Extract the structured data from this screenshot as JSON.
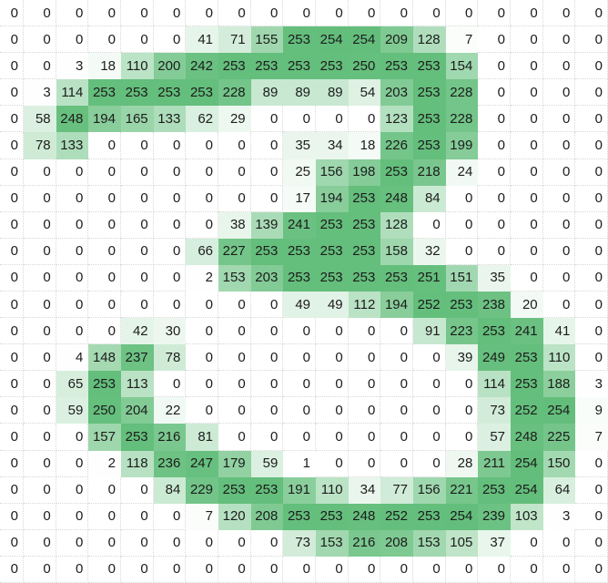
{
  "chart_data": {
    "type": "heatmap",
    "title": "",
    "rows": 22,
    "cols": 19,
    "value_min": 0,
    "value_max": 254,
    "min_color": "#FFFFFF",
    "max_color": "#63BE7B",
    "text_color": "#1C1C1C",
    "gridline_color": "#D8D8D8",
    "cell_text_align": "right",
    "legend_position": "none",
    "matrix": [
      [
        0,
        0,
        0,
        0,
        0,
        0,
        0,
        0,
        0,
        0,
        0,
        0,
        0,
        0,
        0,
        0,
        0,
        0,
        0
      ],
      [
        0,
        0,
        0,
        0,
        0,
        0,
        41,
        71,
        155,
        253,
        254,
        254,
        209,
        128,
        7,
        0,
        0,
        0,
        0
      ],
      [
        0,
        0,
        3,
        18,
        110,
        200,
        242,
        253,
        253,
        253,
        253,
        250,
        253,
        253,
        154,
        0,
        0,
        0,
        0
      ],
      [
        0,
        3,
        114,
        253,
        253,
        253,
        253,
        228,
        89,
        89,
        89,
        54,
        203,
        253,
        228,
        0,
        0,
        0,
        0
      ],
      [
        0,
        58,
        248,
        194,
        165,
        133,
        62,
        29,
        0,
        0,
        0,
        0,
        123,
        253,
        228,
        0,
        0,
        0,
        0
      ],
      [
        0,
        78,
        133,
        0,
        0,
        0,
        0,
        0,
        0,
        35,
        34,
        18,
        226,
        253,
        199,
        0,
        0,
        0,
        0
      ],
      [
        0,
        0,
        0,
        0,
        0,
        0,
        0,
        0,
        0,
        25,
        156,
        198,
        253,
        218,
        24,
        0,
        0,
        0,
        0
      ],
      [
        0,
        0,
        0,
        0,
        0,
        0,
        0,
        0,
        0,
        17,
        194,
        253,
        248,
        84,
        0,
        0,
        0,
        0,
        0
      ],
      [
        0,
        0,
        0,
        0,
        0,
        0,
        0,
        38,
        139,
        241,
        253,
        253,
        128,
        0,
        0,
        0,
        0,
        0,
        0
      ],
      [
        0,
        0,
        0,
        0,
        0,
        0,
        66,
        227,
        253,
        253,
        253,
        253,
        158,
        32,
        0,
        0,
        0,
        0,
        0
      ],
      [
        0,
        0,
        0,
        0,
        0,
        0,
        2,
        153,
        203,
        253,
        253,
        253,
        253,
        251,
        151,
        35,
        0,
        0,
        0
      ],
      [
        0,
        0,
        0,
        0,
        0,
        0,
        0,
        0,
        0,
        49,
        49,
        112,
        194,
        252,
        253,
        238,
        20,
        0,
        0
      ],
      [
        0,
        0,
        0,
        0,
        42,
        30,
        0,
        0,
        0,
        0,
        0,
        0,
        0,
        91,
        223,
        253,
        241,
        41,
        0
      ],
      [
        0,
        0,
        4,
        148,
        237,
        78,
        0,
        0,
        0,
        0,
        0,
        0,
        0,
        0,
        39,
        249,
        253,
        110,
        0
      ],
      [
        0,
        0,
        65,
        253,
        113,
        0,
        0,
        0,
        0,
        0,
        0,
        0,
        0,
        0,
        0,
        114,
        253,
        188,
        3
      ],
      [
        0,
        0,
        59,
        250,
        204,
        22,
        0,
        0,
        0,
        0,
        0,
        0,
        0,
        0,
        0,
        73,
        252,
        254,
        9
      ],
      [
        0,
        0,
        0,
        157,
        253,
        216,
        81,
        0,
        0,
        0,
        0,
        0,
        0,
        0,
        0,
        57,
        248,
        225,
        7
      ],
      [
        0,
        0,
        0,
        2,
        118,
        236,
        247,
        179,
        59,
        1,
        0,
        0,
        0,
        0,
        28,
        211,
        254,
        150,
        0
      ],
      [
        0,
        0,
        0,
        0,
        0,
        84,
        229,
        253,
        253,
        191,
        110,
        34,
        77,
        156,
        221,
        253,
        254,
        64,
        0
      ],
      [
        0,
        0,
        0,
        0,
        0,
        0,
        7,
        120,
        208,
        253,
        253,
        248,
        252,
        253,
        254,
        239,
        103,
        3,
        0
      ],
      [
        0,
        0,
        0,
        0,
        0,
        0,
        0,
        0,
        0,
        73,
        153,
        216,
        208,
        153,
        105,
        37,
        0,
        0,
        0
      ],
      [
        0,
        0,
        0,
        0,
        0,
        0,
        0,
        0,
        0,
        0,
        0,
        0,
        0,
        0,
        0,
        0,
        0,
        0,
        0
      ]
    ]
  }
}
